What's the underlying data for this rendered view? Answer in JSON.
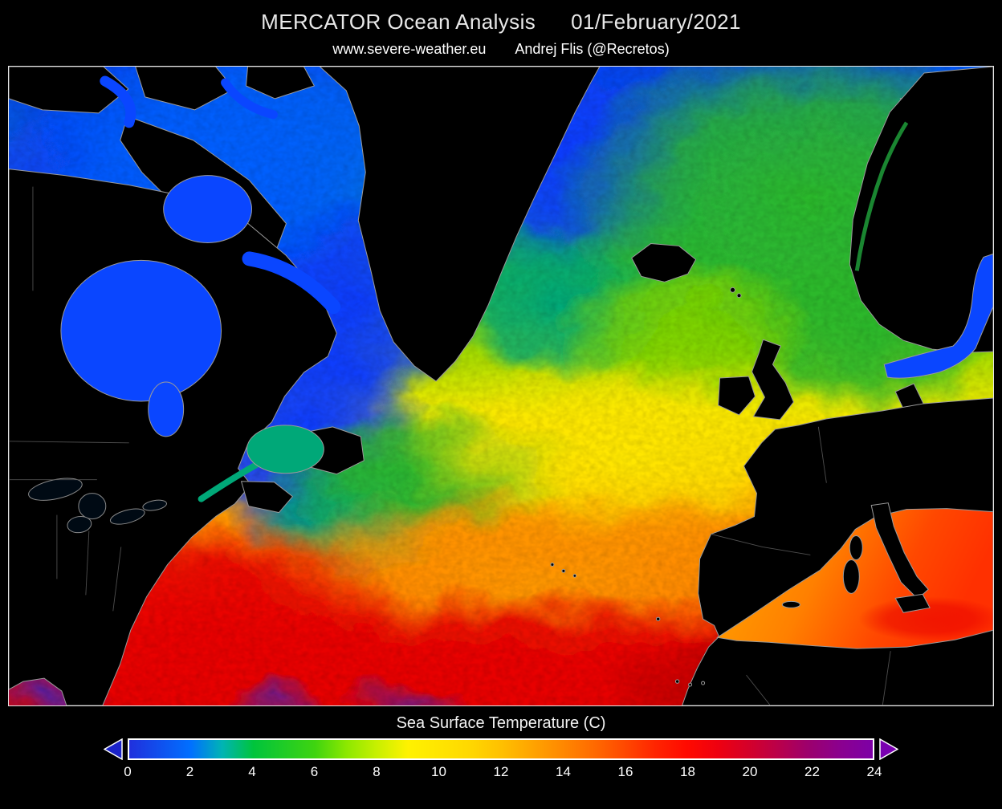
{
  "header": {
    "title_left": "MERCATOR Ocean Analysis",
    "title_right": "01/February/2021",
    "credit_left": "www.severe-weather.eu",
    "credit_right": "Andrej Flis (@Recretos)"
  },
  "colorbar": {
    "label": "Sea Surface Temperature (C)",
    "min": 0,
    "max": 24,
    "ticks": [
      "0",
      "2",
      "4",
      "6",
      "8",
      "10",
      "12",
      "14",
      "16",
      "18",
      "20",
      "22",
      "24"
    ],
    "under_arrow_color": "#1b23c8",
    "over_arrow_color": "#7a00b0",
    "gradient": [
      {
        "value": 0,
        "color": "#2030dd"
      },
      {
        "value": 2,
        "color": "#0070ff"
      },
      {
        "value": 3,
        "color": "#00b4b4"
      },
      {
        "value": 4,
        "color": "#00c43c"
      },
      {
        "value": 6,
        "color": "#3fd410"
      },
      {
        "value": 7,
        "color": "#8ce800"
      },
      {
        "value": 8,
        "color": "#c8f000"
      },
      {
        "value": 9,
        "color": "#fff200"
      },
      {
        "value": 11,
        "color": "#ffd800"
      },
      {
        "value": 12,
        "color": "#ffc000"
      },
      {
        "value": 13,
        "color": "#ffa400"
      },
      {
        "value": 14,
        "color": "#ff8800"
      },
      {
        "value": 15,
        "color": "#ff6a00"
      },
      {
        "value": 16,
        "color": "#ff4800"
      },
      {
        "value": 17,
        "color": "#ff2400"
      },
      {
        "value": 18,
        "color": "#ff0a00"
      },
      {
        "value": 19,
        "color": "#ee0010"
      },
      {
        "value": 20,
        "color": "#d4002a"
      },
      {
        "value": 21,
        "color": "#b8004c"
      },
      {
        "value": 22,
        "color": "#9a0070"
      },
      {
        "value": 23,
        "color": "#8a0090"
      },
      {
        "value": 24,
        "color": "#7d00a6"
      }
    ]
  },
  "chart_data": {
    "type": "heatmap",
    "title": "MERCATOR Ocean Analysis 01/February/2021",
    "legend_label": "Sea Surface Temperature (C)",
    "scale_min": 0,
    "scale_max": 24,
    "scale_ticks": [
      0,
      2,
      4,
      6,
      8,
      10,
      12,
      14,
      16,
      18,
      20,
      22,
      24
    ],
    "legend_position": "bottom"
  }
}
